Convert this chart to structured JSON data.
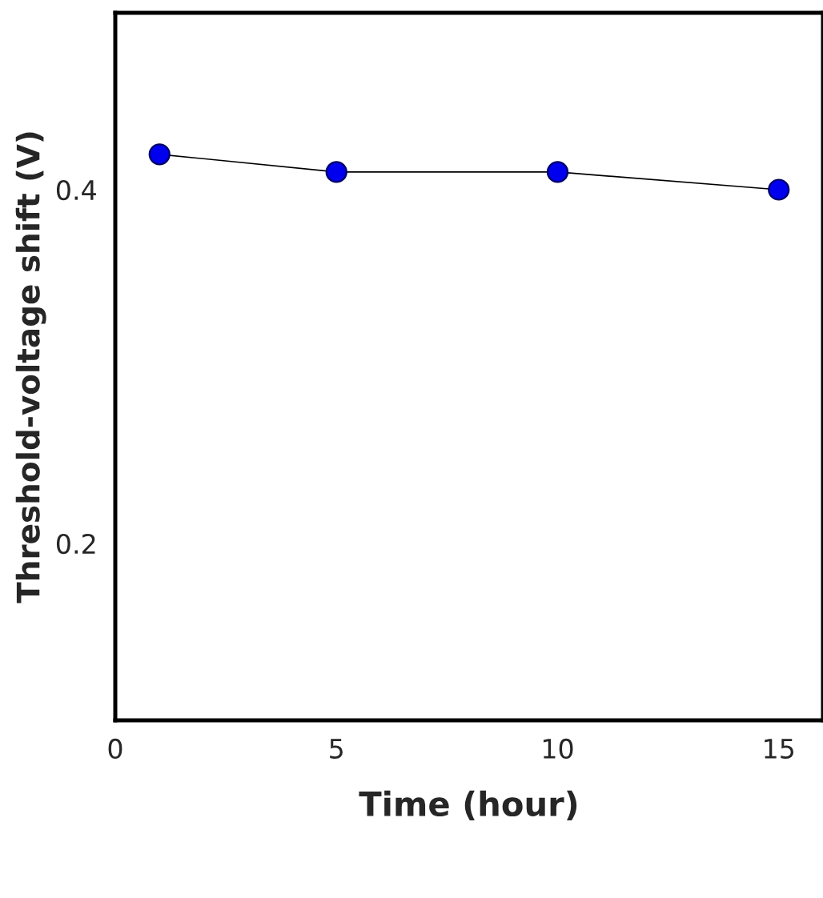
{
  "chart_data": {
    "type": "line",
    "xlabel": "Time (hour)",
    "ylabel": "Threshold-voltage shift (V)",
    "x": [
      1,
      5,
      10,
      15
    ],
    "series": [
      {
        "color": "#0000ee",
        "values": [
          0.42,
          0.41,
          0.41,
          0.4
        ]
      }
    ],
    "xlim": [
      0,
      16
    ],
    "xticks": [
      0,
      5,
      10,
      15
    ],
    "ylim": [
      0.1,
      0.5
    ],
    "yticks": [
      0.2,
      0.4
    ],
    "marker": "circle",
    "line_style": "solid",
    "grid": false,
    "legend": false
  }
}
